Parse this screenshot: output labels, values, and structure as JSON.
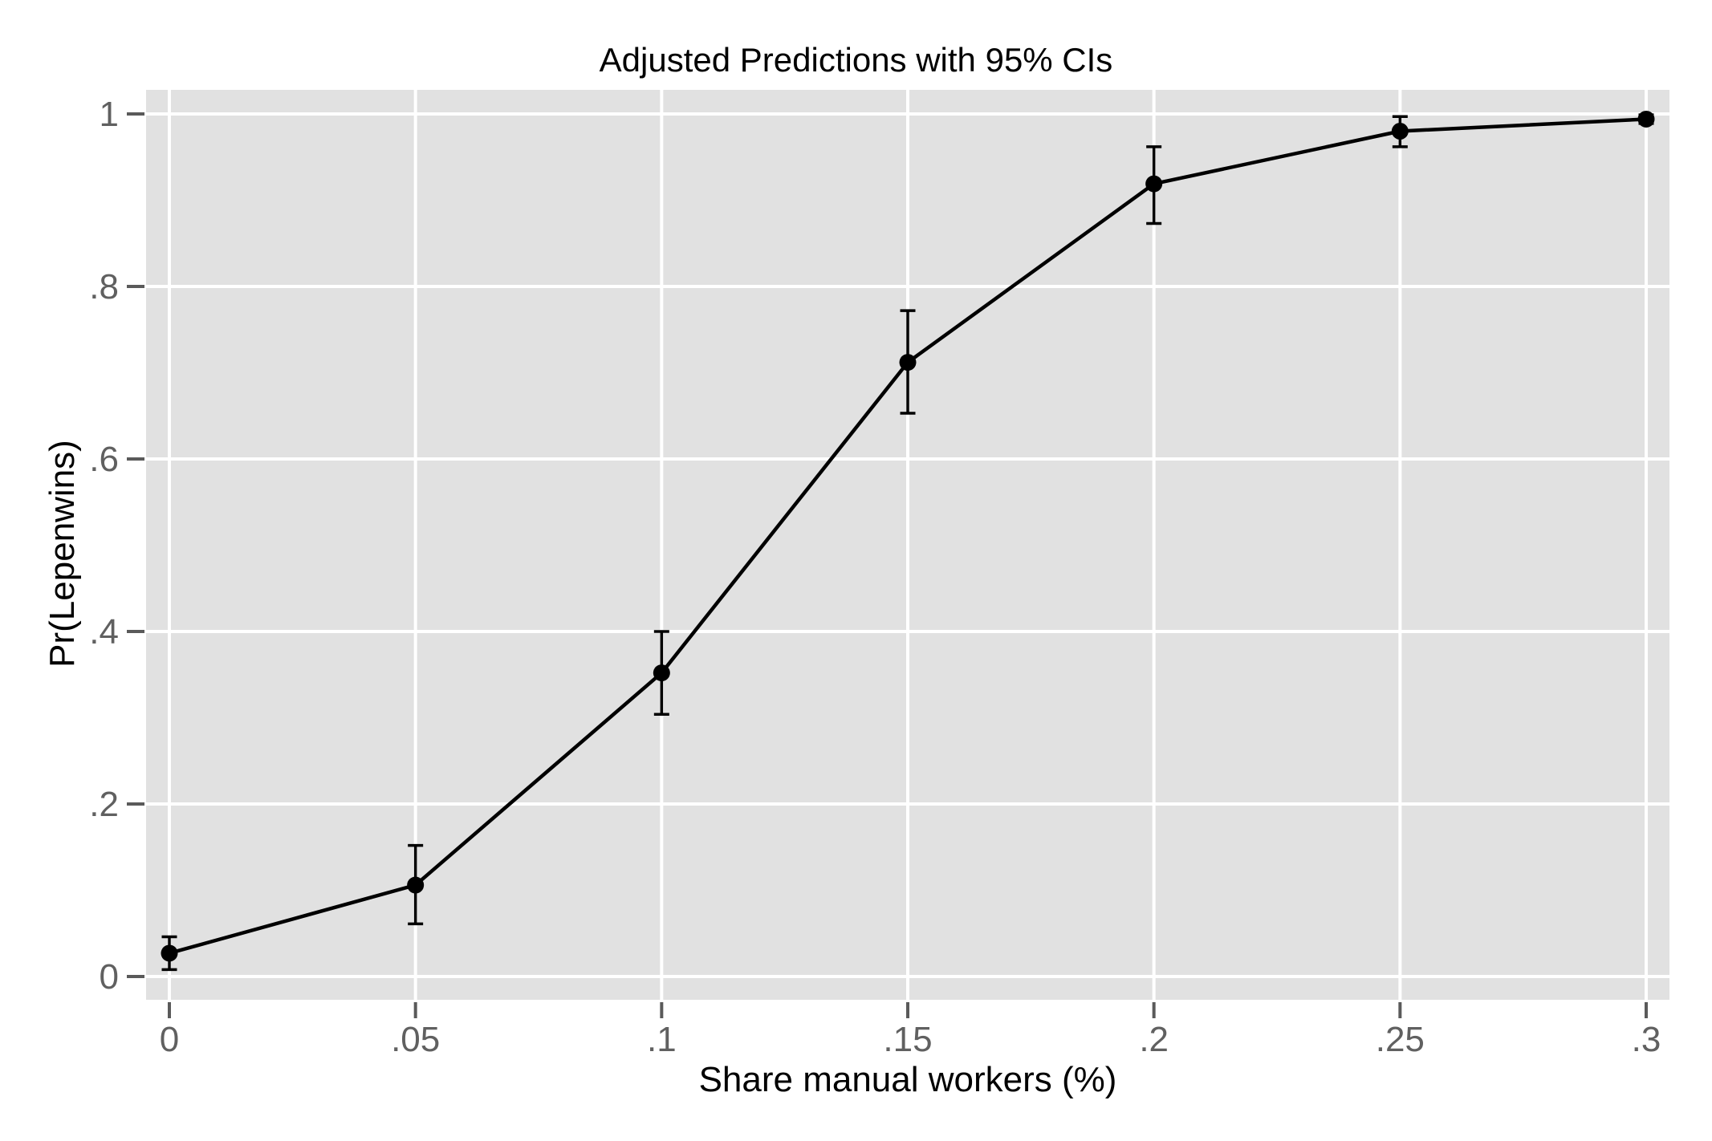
{
  "chart_data": {
    "type": "line",
    "title": "Adjusted Predictions with 95% CIs",
    "xlabel": "Share manual workers (%)",
    "ylabel": "Pr(Lepenwins)",
    "x": [
      0,
      0.05,
      0.1,
      0.15,
      0.2,
      0.25,
      0.3
    ],
    "x_tick_labels": [
      "0",
      ".05",
      ".1",
      ".15",
      ".2",
      ".25",
      ".3"
    ],
    "y_ticks": [
      0,
      0.2,
      0.4,
      0.6,
      0.8,
      1
    ],
    "y_tick_labels": [
      "0",
      ".2",
      ".4",
      ".6",
      ".8",
      "1"
    ],
    "xlim": [
      0,
      0.3
    ],
    "ylim": [
      0,
      1
    ],
    "grid": true,
    "legend": "none",
    "series": [
      {
        "name": "Adjusted prediction",
        "values": [
          0.027,
          0.106,
          0.352,
          0.712,
          0.919,
          0.98,
          0.994
        ],
        "ci_low": [
          0.008,
          0.061,
          0.304,
          0.653,
          0.873,
          0.962,
          0.989
        ],
        "ci_high": [
          0.046,
          0.152,
          0.4,
          0.772,
          0.962,
          0.997,
          0.999
        ]
      }
    ],
    "colors": {
      "panel_background": "#e1e1e1",
      "gridline": "#ffffff",
      "series_line": "#000000",
      "marker": "#000000",
      "error_bar": "#000000",
      "tick_mark": "#5a5a5a",
      "tick_label": "#606060",
      "title_text": "#000000"
    }
  }
}
